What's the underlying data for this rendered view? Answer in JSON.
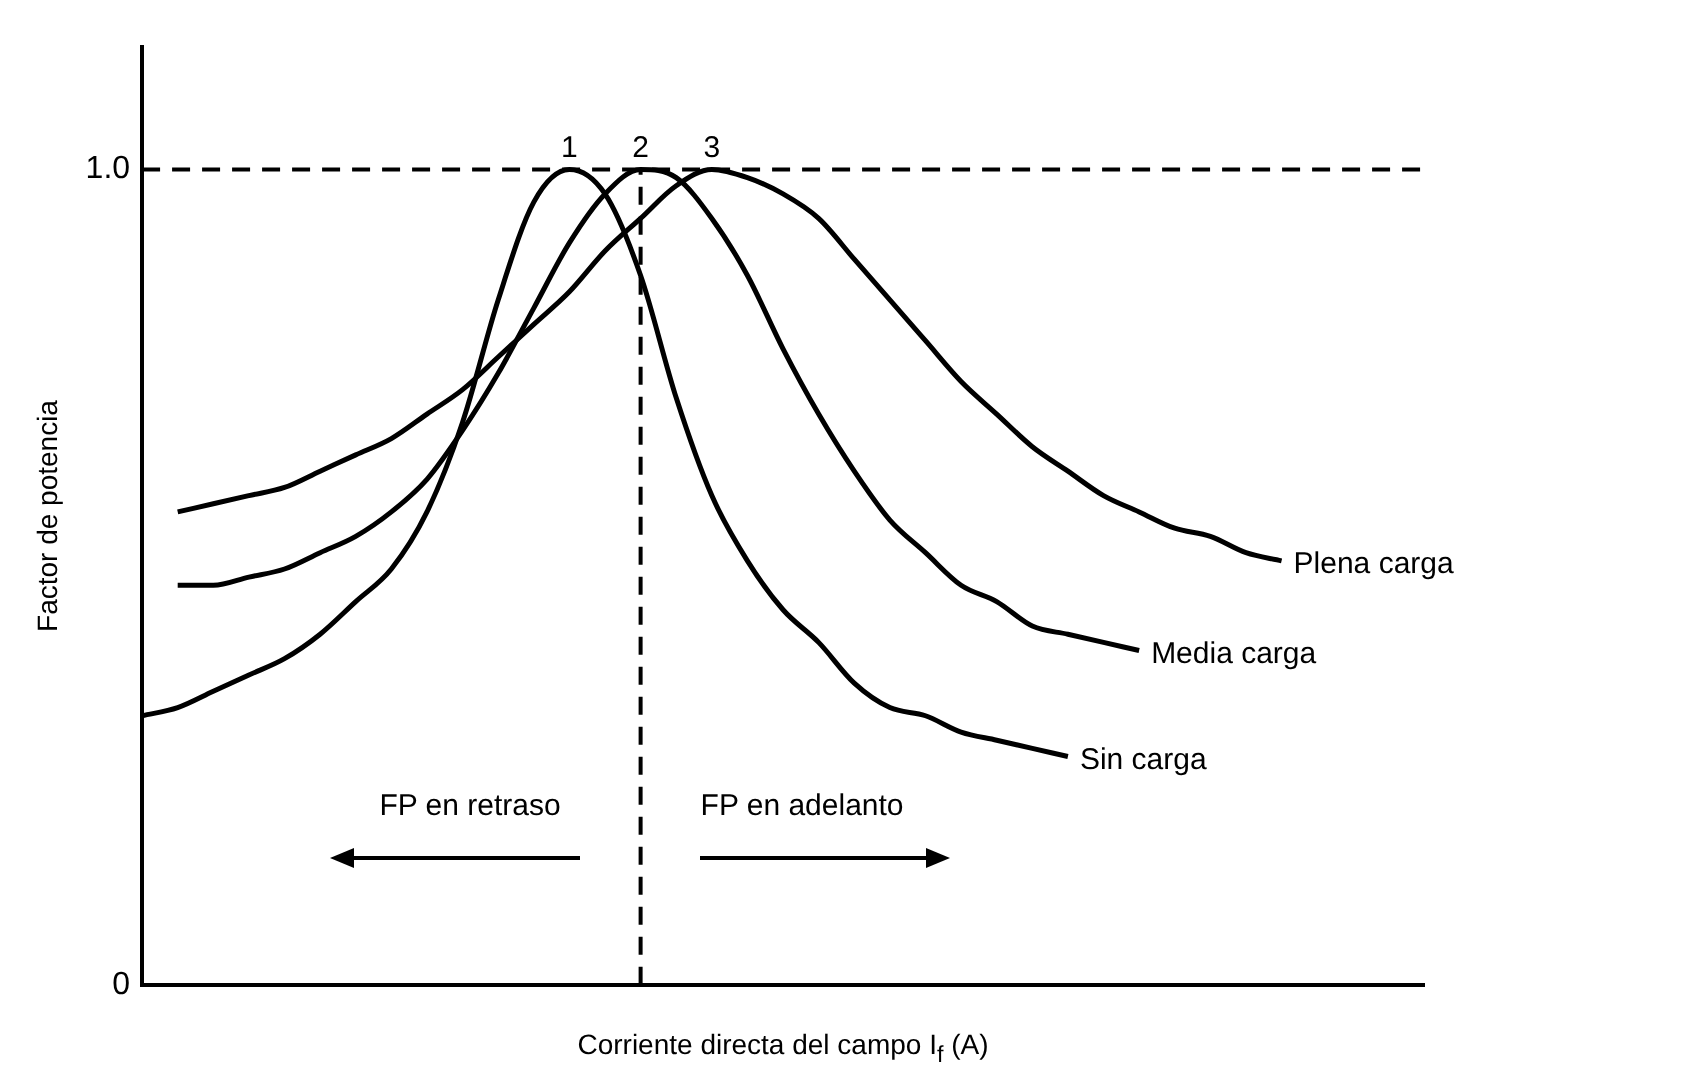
{
  "chart_data": {
    "type": "line",
    "xlabel": "Corriente directa del campo I$_{f}$ (A)",
    "ylabel": "Factor de potencia",
    "categories": [
      null,
      null,
      null,
      null,
      null,
      null,
      null,
      null,
      null,
      null,
      null,
      null,
      null,
      null,
      null,
      null,
      null,
      null,
      null,
      null,
      null,
      null,
      null,
      null,
      null,
      null,
      null,
      null,
      null,
      null,
      null,
      null,
      null,
      null,
      null,
      null,
      null
    ],
    "series": [
      {
        "name": "Sin carga",
        "color": "#000000",
        "values": [
          0.33,
          0.34,
          0.36,
          0.38,
          0.4,
          0.43,
          0.47,
          0.51,
          0.58,
          0.69,
          0.84,
          0.96,
          1.0,
          0.97,
          0.87,
          0.72,
          0.6,
          0.52,
          0.46,
          0.42,
          0.37,
          0.34,
          0.33,
          0.31,
          0.3,
          0.29,
          0.28,
          null,
          null,
          null,
          null,
          null,
          null,
          null,
          null,
          null,
          null
        ]
      },
      {
        "name": "Media carga",
        "color": "#000000",
        "values": [
          null,
          0.49,
          0.49,
          0.5,
          0.51,
          0.53,
          0.55,
          0.58,
          0.62,
          0.68,
          0.75,
          0.83,
          0.91,
          0.97,
          1.0,
          0.99,
          0.94,
          0.87,
          0.78,
          0.7,
          0.63,
          0.57,
          0.53,
          0.49,
          0.47,
          0.44,
          0.43,
          0.42,
          0.41,
          null,
          null,
          null,
          null,
          null,
          null,
          null,
          null
        ]
      },
      {
        "name": "Plena carga",
        "color": "#000000",
        "values": [
          null,
          0.58,
          0.59,
          0.6,
          0.61,
          0.63,
          0.65,
          0.67,
          0.7,
          0.73,
          0.77,
          0.81,
          0.85,
          0.9,
          0.94,
          0.98,
          1.0,
          0.99,
          0.97,
          0.94,
          0.89,
          0.84,
          0.79,
          0.74,
          0.7,
          0.66,
          0.63,
          0.6,
          0.58,
          0.56,
          0.55,
          0.53,
          0.52,
          null,
          null,
          null,
          null
        ]
      }
    ],
    "ylim": [
      0,
      1.15
    ],
    "yticks": [
      0,
      {
        "value": 1,
        "label": "1.0"
      }
    ],
    "tick_labels": "y",
    "legend": false,
    "grid": false,
    "marker": "none",
    "line_style": "solid",
    "ref_lines": [
      {
        "axis": "y",
        "value": 1,
        "line_style": "dashed",
        "color": "#000000"
      }
    ],
    "annotations": [
      "1",
      "2",
      "3",
      "FP en retraso",
      "FP en adelanto"
    ]
  }
}
